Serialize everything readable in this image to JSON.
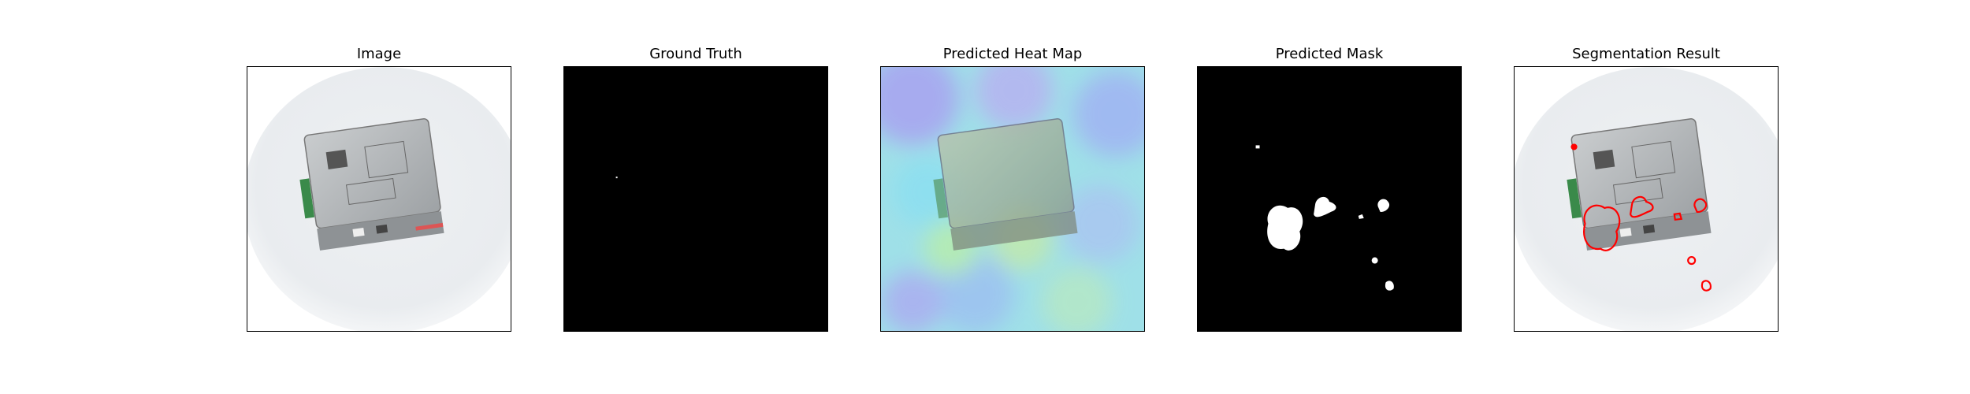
{
  "panels": [
    {
      "title": "Image"
    },
    {
      "title": "Ground Truth"
    },
    {
      "title": "Predicted Heat Map"
    },
    {
      "title": "Predicted Mask"
    },
    {
      "title": "Segmentation Result"
    }
  ],
  "colors": {
    "contour": "#ff0000",
    "mask_fg": "#ffffff",
    "mask_bg": "#000000"
  }
}
